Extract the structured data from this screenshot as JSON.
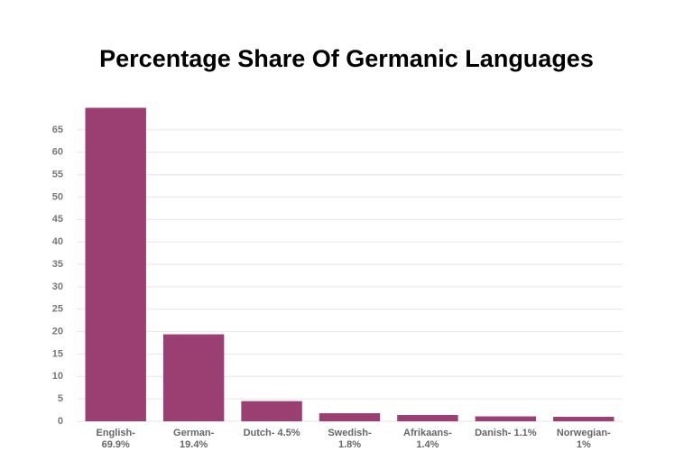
{
  "chart_data": {
    "type": "bar",
    "title": "Percentage Share Of Germanic Languages",
    "categories": [
      "English- 69.9%",
      "German- 19.4%",
      "Dutch- 4.5%",
      "Swedish- 1.8%",
      "Afrikaans- 1.4%",
      "Danish- 1.1%",
      "Norwegian- 1%"
    ],
    "values": [
      69.9,
      19.4,
      4.5,
      1.8,
      1.4,
      1.1,
      1
    ],
    "color": "#9b3f73",
    "ylim": [
      0,
      70
    ],
    "yticks": [
      0,
      5,
      10,
      15,
      20,
      25,
      30,
      35,
      40,
      45,
      50,
      55,
      60,
      65
    ],
    "grid": true
  }
}
